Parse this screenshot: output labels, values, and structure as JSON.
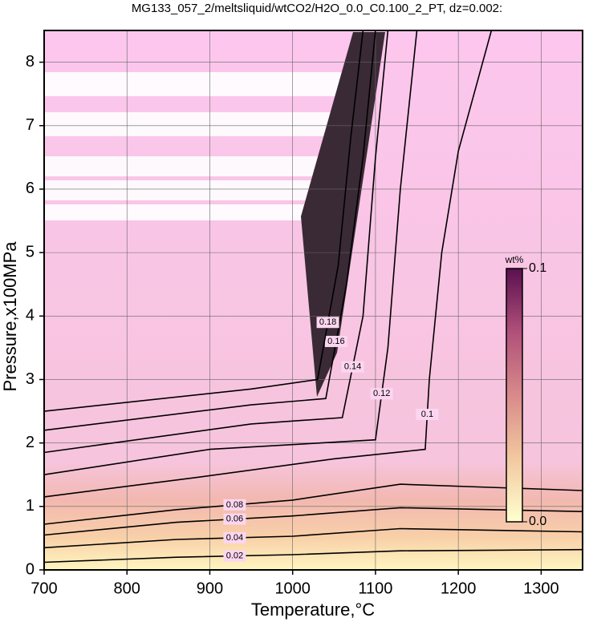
{
  "chart_data": {
    "type": "contour",
    "title": "MG133_057_2/meltsliquid/wtCO2/H2O_0.0_C0.100_2_PT, dz=0.002:",
    "x_label": "Temperature,°C",
    "y_label": "Pressure,x100MPa",
    "xlim": [
      700,
      1350
    ],
    "ylim": [
      0,
      8.5
    ],
    "xticks": [
      700,
      800,
      900,
      1000,
      1100,
      1200,
      1300
    ],
    "yticks": [
      0,
      1,
      2,
      3,
      4,
      5,
      6,
      7,
      8
    ],
    "grid": true,
    "series": [
      {
        "name": "0.02",
        "color": "#000000",
        "x": [
          700,
          860,
          1000,
          1130,
          1350
        ],
        "values": [
          0.12,
          0.2,
          0.24,
          0.3,
          0.32
        ]
      },
      {
        "name": "0.04",
        "color": "#000000",
        "x": [
          700,
          860,
          1000,
          1130,
          1350
        ],
        "values": [
          0.35,
          0.48,
          0.53,
          0.65,
          0.6
        ]
      },
      {
        "name": "0.06",
        "color": "#000000",
        "x": [
          700,
          860,
          1000,
          1130,
          1350
        ],
        "values": [
          0.55,
          0.75,
          0.85,
          0.98,
          0.92
        ]
      },
      {
        "name": "0.08",
        "color": "#000000",
        "x": [
          700,
          860,
          1000,
          1130,
          1350
        ],
        "values": [
          0.72,
          0.95,
          1.1,
          1.35,
          1.25
        ]
      },
      {
        "name": "0.1",
        "color": "#000000",
        "x": [
          700,
          880,
          1050,
          1160,
          1165,
          1180,
          1200,
          1240
        ],
        "values": [
          1.15,
          1.45,
          1.75,
          1.9,
          3.0,
          5.0,
          6.6,
          8.5
        ]
      },
      {
        "name": "0.12",
        "color": "#000000",
        "x": [
          700,
          900,
          1100,
          1115,
          1130,
          1150
        ],
        "values": [
          1.5,
          1.9,
          2.05,
          3.5,
          6.0,
          8.5
        ]
      },
      {
        "name": "0.14",
        "color": "#000000",
        "x": [
          700,
          950,
          1060,
          1085,
          1100,
          1115
        ],
        "values": [
          1.85,
          2.3,
          2.4,
          4.0,
          6.5,
          8.5
        ]
      },
      {
        "name": "0.16",
        "color": "#000000",
        "x": [
          700,
          950,
          1040,
          1065,
          1085,
          1100
        ],
        "values": [
          2.2,
          2.6,
          2.7,
          4.5,
          6.5,
          8.5
        ]
      },
      {
        "name": "0.18",
        "color": "#000000",
        "x": [
          700,
          950,
          1030,
          1055,
          1070,
          1085
        ],
        "values": [
          2.5,
          2.85,
          3.0,
          4.8,
          6.8,
          8.5
        ]
      }
    ],
    "colorbar": {
      "label": "wt%",
      "lim": [
        0,
        0.1
      ],
      "ticks": [
        {
          "value": 0,
          "label": "0.0"
        },
        0.1
      ],
      "colors": [
        "#ffffd0",
        "#f2c8a0",
        "#d88a8a",
        "#b0507a",
        "#5a1050"
      ]
    }
  }
}
